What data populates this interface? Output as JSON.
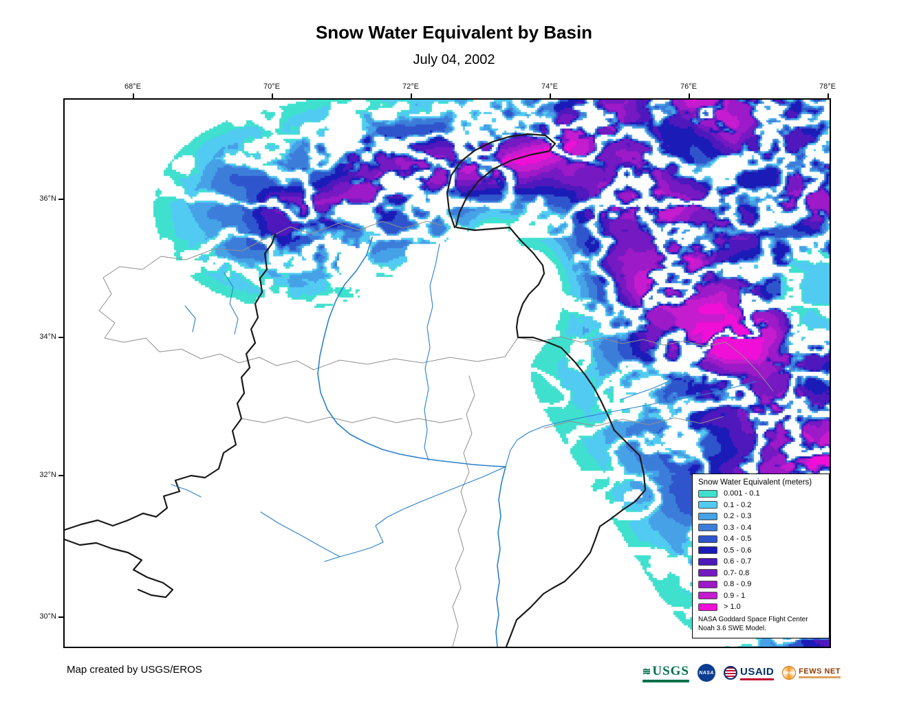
{
  "title": "Snow Water Equivalent by Basin",
  "subtitle": "July 04, 2002",
  "map": {
    "lon_ticks": [
      "68°E",
      "70°E",
      "72°E",
      "74°E",
      "76°E",
      "78°E"
    ],
    "lat_ticks": [
      "36°N",
      "34°N",
      "32°N",
      "30°N"
    ],
    "colors": {
      "river": "#2A7FC9",
      "basin_outline": "#8F8F8F",
      "basin_boundary_bold": "#1A1A1A",
      "background": "#FFFFFF"
    }
  },
  "legend": {
    "title": "Snow Water Equivalent (meters)",
    "classes": [
      {
        "label": "0.001 - 0.1",
        "color": "#3FE0CE"
      },
      {
        "label": "0.1 - 0.2",
        "color": "#52CBF2"
      },
      {
        "label": "0.2 - 0.3",
        "color": "#46A1E6"
      },
      {
        "label": "0.3 - 0.4",
        "color": "#3D7DDA"
      },
      {
        "label": "0.4 - 0.5",
        "color": "#2F55CC"
      },
      {
        "label": "0.5 - 0.6",
        "color": "#1B1BB8"
      },
      {
        "label": "0.6 - 0.7",
        "color": "#4E18BC"
      },
      {
        "label": "0.7- 0.8",
        "color": "#7519C2"
      },
      {
        "label": "0.8 - 0.9",
        "color": "#9C1AC8"
      },
      {
        "label": "0.9 - 1",
        "color": "#C41CCE"
      },
      {
        "label": "> 1.0",
        "color": "#F00FD6"
      }
    ],
    "note_line1": "NASA Goddard Space Flight Center",
    "note_line2": "Noah 3.6 SWE Model.",
    "title_full": "Snow Water Equivalent (meters)"
  },
  "credit": "Map created by USGS/EROS",
  "logos": {
    "usgs": "USGS",
    "nasa": "NASA",
    "usaid": "USAID",
    "fews_net": "FEWS NET"
  }
}
